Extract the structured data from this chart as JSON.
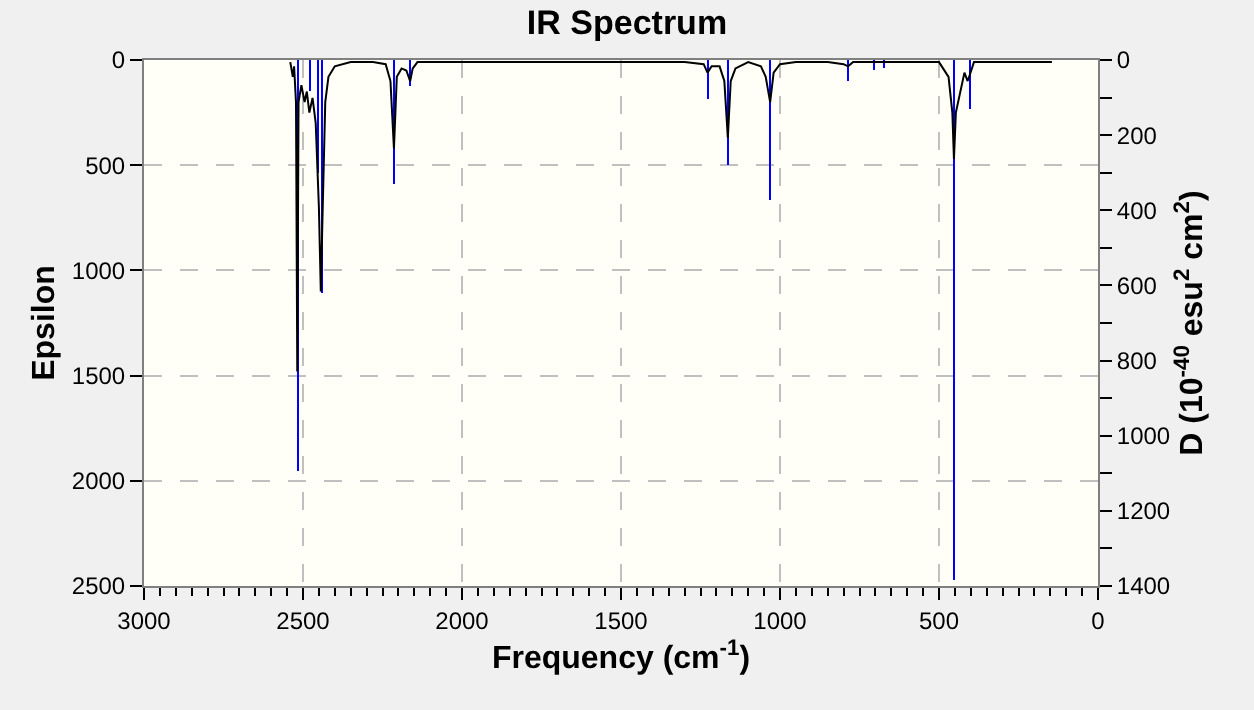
{
  "chart_data": {
    "type": "line",
    "title": "IR Spectrum",
    "xlabel": "Frequency (cm$^{-1}$)",
    "ylabel": "Epsilon",
    "y2label": "D (10$^{-40}$ esu$^{2}$ cm$^{2}$)",
    "xlim": [
      3000,
      0
    ],
    "xticks": [
      3000,
      2500,
      2000,
      1500,
      1000,
      500,
      0
    ],
    "ylim": [
      2500,
      0
    ],
    "yticks": [
      0,
      500,
      1000,
      1500,
      2000,
      2500
    ],
    "y2lim": [
      1400,
      0
    ],
    "y2ticks": [
      0,
      200,
      400,
      600,
      800,
      1000,
      1200,
      1400
    ],
    "grid": true,
    "series": [
      {
        "color": "#000000",
        "x": [
          2540,
          2532,
          2528,
          2522,
          2518,
          2514,
          2505,
          2495,
          2488,
          2480,
          2470,
          2460,
          2450,
          2444,
          2438,
          2430,
          2420,
          2400,
          2350,
          2280,
          2240,
          2225,
          2214,
          2205,
          2190,
          2175,
          2163,
          2155,
          2140,
          2000,
          1800,
          1500,
          1300,
          1240,
          1228,
          1215,
          1190,
          1175,
          1164,
          1155,
          1140,
          1100,
          1060,
          1045,
          1031,
          1020,
          1000,
          950,
          850,
          800,
          786,
          770,
          700,
          600,
          500,
          470,
          458,
          453,
          447,
          420,
          410,
          403,
          390,
          300,
          145
        ],
        "values": [
          10,
          80,
          30,
          200,
          1480,
          200,
          120,
          200,
          150,
          250,
          180,
          300,
          700,
          1100,
          700,
          200,
          80,
          30,
          10,
          10,
          20,
          100,
          420,
          80,
          40,
          50,
          100,
          40,
          10,
          10,
          10,
          10,
          10,
          20,
          60,
          30,
          30,
          100,
          370,
          100,
          40,
          10,
          30,
          80,
          200,
          60,
          20,
          10,
          10,
          20,
          30,
          10,
          10,
          10,
          10,
          80,
          250,
          470,
          250,
          60,
          100,
          70,
          10,
          10,
          10
        ]
      },
      {
        "type": "bar",
        "axis": "y2",
        "color": "#0000ff",
        "x": [
          2516,
          2478,
          2453,
          2440,
          2214,
          2163,
          1226,
          1164,
          1031,
          786,
          704,
          673,
          453,
          403
        ],
        "values": [
          1094,
          82,
          300,
          620,
          330,
          70,
          104,
          280,
          372,
          55,
          27,
          20,
          1384,
          131
        ]
      }
    ]
  }
}
